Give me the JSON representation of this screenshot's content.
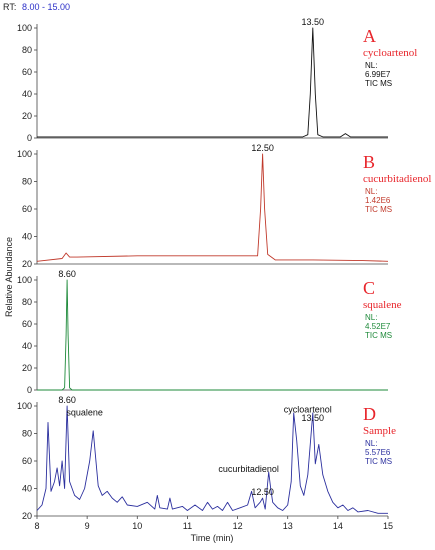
{
  "header": {
    "rt_label": "RT:",
    "rt_range": "8.00 - 15.00"
  },
  "chart_data": {
    "type": "line",
    "xlabel": "Time (min)",
    "ylabel": "Relative Abundance",
    "xlim": [
      8,
      15
    ],
    "x_ticks": [
      "8",
      "9",
      "10",
      "11",
      "12",
      "13",
      "14",
      "15"
    ],
    "panels": [
      {
        "letter": "A",
        "compound": "cycloartenol",
        "color": "#111111",
        "label_color": "#e8252b",
        "info": [
          "NL:",
          "6.99E7",
          "TIC  MS"
        ],
        "ylim": [
          0,
          100
        ],
        "y_ticks": [
          "0",
          "20",
          "40",
          "60",
          "80",
          "100"
        ],
        "peak_labels": [
          {
            "x": 13.5,
            "y": 100,
            "text": "13.50"
          }
        ],
        "x": [
          8.0,
          13.3,
          13.4,
          13.45,
          13.5,
          13.55,
          13.6,
          13.7,
          14.05,
          14.15,
          14.25,
          15.0
        ],
        "y": [
          1,
          1,
          3,
          40,
          100,
          40,
          3,
          1,
          1,
          4,
          1,
          1
        ]
      },
      {
        "letter": "B",
        "compound": "cucurbitadienol",
        "color": "#c0392b",
        "label_color": "#e8252b",
        "info": [
          "NL:",
          "1.42E6",
          "TIC  MS"
        ],
        "ylim": [
          20,
          100
        ],
        "y_ticks": [
          "20",
          "40",
          "60",
          "80",
          "100"
        ],
        "peak_labels": [
          {
            "x": 12.5,
            "y": 100,
            "text": "12.50"
          }
        ],
        "x": [
          8.0,
          8.5,
          8.58,
          8.65,
          8.8,
          10.0,
          11.0,
          12.0,
          12.4,
          12.46,
          12.5,
          12.54,
          12.6,
          12.75,
          13.5,
          14.5,
          15.0
        ],
        "y": [
          22,
          24,
          28,
          25,
          25,
          26,
          26,
          26,
          26,
          60,
          100,
          60,
          27,
          23,
          23,
          22.5,
          22
        ]
      },
      {
        "letter": "C",
        "compound": "squalene",
        "color": "#1e8a3a",
        "label_color": "#e8252b",
        "info": [
          "NL:",
          "4.52E7",
          "TIC  MS"
        ],
        "ylim": [
          0,
          100
        ],
        "y_ticks": [
          "0",
          "20",
          "40",
          "60",
          "80",
          "100"
        ],
        "peak_labels": [
          {
            "x": 8.6,
            "y": 100,
            "text": "8.60"
          }
        ],
        "x": [
          8.0,
          8.5,
          8.55,
          8.58,
          8.6,
          8.62,
          8.65,
          8.7,
          15.0
        ],
        "y": [
          0,
          0,
          2,
          50,
          100,
          50,
          2,
          0,
          0
        ]
      },
      {
        "letter": "D",
        "compound": "Sample",
        "color": "#2b2f9e",
        "label_color": "#e8252b",
        "info": [
          "NL:",
          "5.57E6",
          "TIC  MS"
        ],
        "ylim": [
          20,
          100
        ],
        "y_ticks": [
          "20",
          "40",
          "60",
          "80",
          "100"
        ],
        "peak_labels": [
          {
            "x": 8.6,
            "y": 100,
            "text": "8.60"
          },
          {
            "x": 8.95,
            "y": 91,
            "text": "squalene"
          },
          {
            "x": 12.22,
            "y": 50,
            "text": "cucurbitadienol"
          },
          {
            "x": 12.5,
            "y": 33,
            "text": "12.50"
          },
          {
            "x": 13.4,
            "y": 93,
            "text": "cycloartenol"
          },
          {
            "x": 13.5,
            "y": 87,
            "text": "13.50"
          }
        ],
        "x": [
          8.0,
          8.1,
          8.18,
          8.22,
          8.28,
          8.35,
          8.4,
          8.45,
          8.5,
          8.55,
          8.6,
          8.65,
          8.75,
          8.85,
          8.95,
          9.05,
          9.12,
          9.18,
          9.22,
          9.3,
          9.4,
          9.5,
          9.6,
          9.7,
          9.8,
          10.0,
          10.2,
          10.35,
          10.4,
          10.45,
          10.6,
          10.65,
          10.7,
          10.9,
          11.0,
          11.15,
          11.3,
          11.4,
          11.5,
          11.6,
          11.7,
          11.8,
          11.9,
          12.05,
          12.2,
          12.28,
          12.35,
          12.45,
          12.5,
          12.55,
          12.62,
          12.66,
          12.7,
          12.8,
          12.9,
          13.0,
          13.07,
          13.12,
          13.18,
          13.25,
          13.32,
          13.4,
          13.5,
          13.55,
          13.62,
          13.7,
          13.8,
          13.9,
          14.0,
          14.1,
          14.2,
          14.3,
          14.4,
          14.6,
          14.8,
          15.0
        ],
        "y": [
          24,
          28,
          40,
          88,
          38,
          45,
          55,
          42,
          60,
          40,
          100,
          45,
          35,
          32,
          40,
          60,
          82,
          58,
          42,
          35,
          38,
          33,
          30,
          34,
          28,
          27,
          30,
          25,
          35,
          26,
          25,
          33,
          25,
          27,
          24,
          28,
          24,
          30,
          25,
          27,
          24,
          30,
          24,
          26,
          28,
          38,
          26,
          30,
          33,
          25,
          52,
          40,
          30,
          26,
          24,
          28,
          45,
          95,
          75,
          42,
          35,
          50,
          95,
          58,
          72,
          50,
          38,
          30,
          26,
          28,
          24,
          26,
          23,
          24,
          22,
          22
        ]
      }
    ]
  }
}
